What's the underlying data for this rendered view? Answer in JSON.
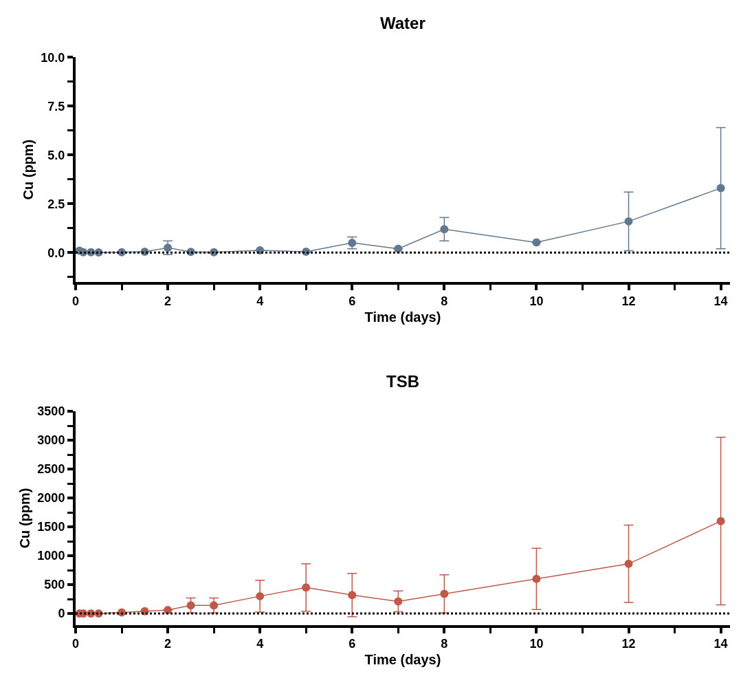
{
  "chart_data": [
    {
      "type": "line",
      "title": "Water",
      "xlabel": "Time (days)",
      "ylabel": "Cu (ppm)",
      "x": [
        0.083,
        0.167,
        0.333,
        0.5,
        1,
        1.5,
        2,
        2.5,
        3,
        4,
        5,
        6,
        7,
        8,
        10,
        12,
        14
      ],
      "series": [
        {
          "color": "#61788f",
          "values": [
            0.1,
            0.02,
            0.02,
            0.01,
            0.02,
            0.05,
            0.25,
            0.04,
            0.02,
            0.12,
            0.05,
            0.5,
            0.2,
            1.2,
            0.52,
            1.6,
            3.3
          ],
          "errors": [
            null,
            null,
            null,
            null,
            null,
            null,
            0.35,
            null,
            null,
            null,
            null,
            0.3,
            null,
            0.6,
            null,
            1.5,
            3.1
          ]
        }
      ],
      "xlim": [
        0,
        14.2
      ],
      "xticks": [
        0,
        2,
        4,
        6,
        8,
        10,
        12,
        14
      ],
      "ylim": [
        -1.5,
        10
      ],
      "yticks": [
        {
          "value": 0,
          "label": "0.0"
        },
        2.5,
        {
          "value": 5,
          "label": "5.0"
        },
        7.5,
        {
          "value": 10,
          "label": "10.0"
        }
      ],
      "ref_lines": [
        {
          "axis": "y",
          "value": 0,
          "color": "#000000",
          "line_style": "dotted"
        }
      ],
      "marker": "circle",
      "line_style": "solid"
    },
    {
      "type": "line",
      "title": "TSB",
      "xlabel": "Time (days)",
      "ylabel": "Cu (ppm)",
      "x": [
        0.083,
        0.167,
        0.333,
        0.5,
        1,
        1.5,
        2,
        2.5,
        3,
        4,
        5,
        6,
        7,
        8,
        10,
        12,
        14
      ],
      "series": [
        {
          "color": "#c0594a",
          "values": [
            0,
            0,
            0,
            0,
            20,
            40,
            60,
            140,
            140,
            300,
            450,
            320,
            210,
            340,
            600,
            860,
            1600
          ],
          "errors": [
            null,
            null,
            null,
            null,
            null,
            null,
            null,
            130,
            130,
            275,
            410,
            375,
            180,
            330,
            530,
            670,
            1450
          ]
        }
      ],
      "xlim": [
        0,
        14.2
      ],
      "xticks": [
        0,
        2,
        4,
        6,
        8,
        10,
        12,
        14
      ],
      "ylim": [
        -200,
        3500
      ],
      "yticks": [
        0,
        500,
        1000,
        1500,
        2000,
        2500,
        3000,
        3500
      ],
      "ref_lines": [
        {
          "axis": "y",
          "value": 0,
          "color": "#000000",
          "line_style": "dotted"
        }
      ],
      "marker": "circle",
      "line_style": "solid"
    }
  ]
}
